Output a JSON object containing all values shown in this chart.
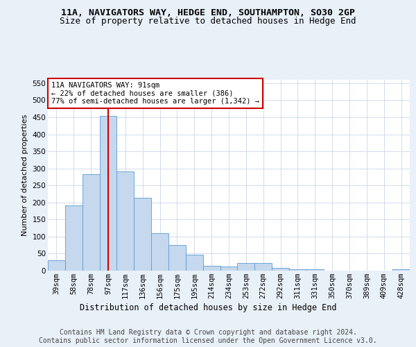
{
  "title1": "11A, NAVIGATORS WAY, HEDGE END, SOUTHAMPTON, SO30 2GP",
  "title2": "Size of property relative to detached houses in Hedge End",
  "xlabel": "Distribution of detached houses by size in Hedge End",
  "ylabel": "Number of detached properties",
  "categories": [
    "39sqm",
    "58sqm",
    "78sqm",
    "97sqm",
    "117sqm",
    "136sqm",
    "156sqm",
    "175sqm",
    "195sqm",
    "214sqm",
    "234sqm",
    "253sqm",
    "272sqm",
    "292sqm",
    "311sqm",
    "331sqm",
    "350sqm",
    "370sqm",
    "389sqm",
    "409sqm",
    "428sqm"
  ],
  "values": [
    30,
    192,
    284,
    455,
    292,
    213,
    109,
    75,
    46,
    14,
    12,
    22,
    22,
    9,
    5,
    5,
    0,
    0,
    0,
    0,
    5
  ],
  "bar_color": "#c5d8ed",
  "bar_edge_color": "#5b9bd5",
  "vline_x": 3.0,
  "vline_color": "#cc0000",
  "annotation_text": "11A NAVIGATORS WAY: 91sqm\n← 22% of detached houses are smaller (386)\n77% of semi-detached houses are larger (1,342) →",
  "annotation_box_color": "#ffffff",
  "annotation_box_edge": "#cc0000",
  "ylim": [
    0,
    560
  ],
  "yticks": [
    0,
    50,
    100,
    150,
    200,
    250,
    300,
    350,
    400,
    450,
    500,
    550
  ],
  "footer1": "Contains HM Land Registry data © Crown copyright and database right 2024.",
  "footer2": "Contains public sector information licensed under the Open Government Licence v3.0.",
  "bg_color": "#e8f0f8",
  "plot_bg_color": "#ffffff",
  "title1_fontsize": 9.5,
  "title2_fontsize": 9,
  "xlabel_fontsize": 8.5,
  "ylabel_fontsize": 8,
  "tick_fontsize": 7.5,
  "footer_fontsize": 7,
  "annot_fontsize": 7.5
}
